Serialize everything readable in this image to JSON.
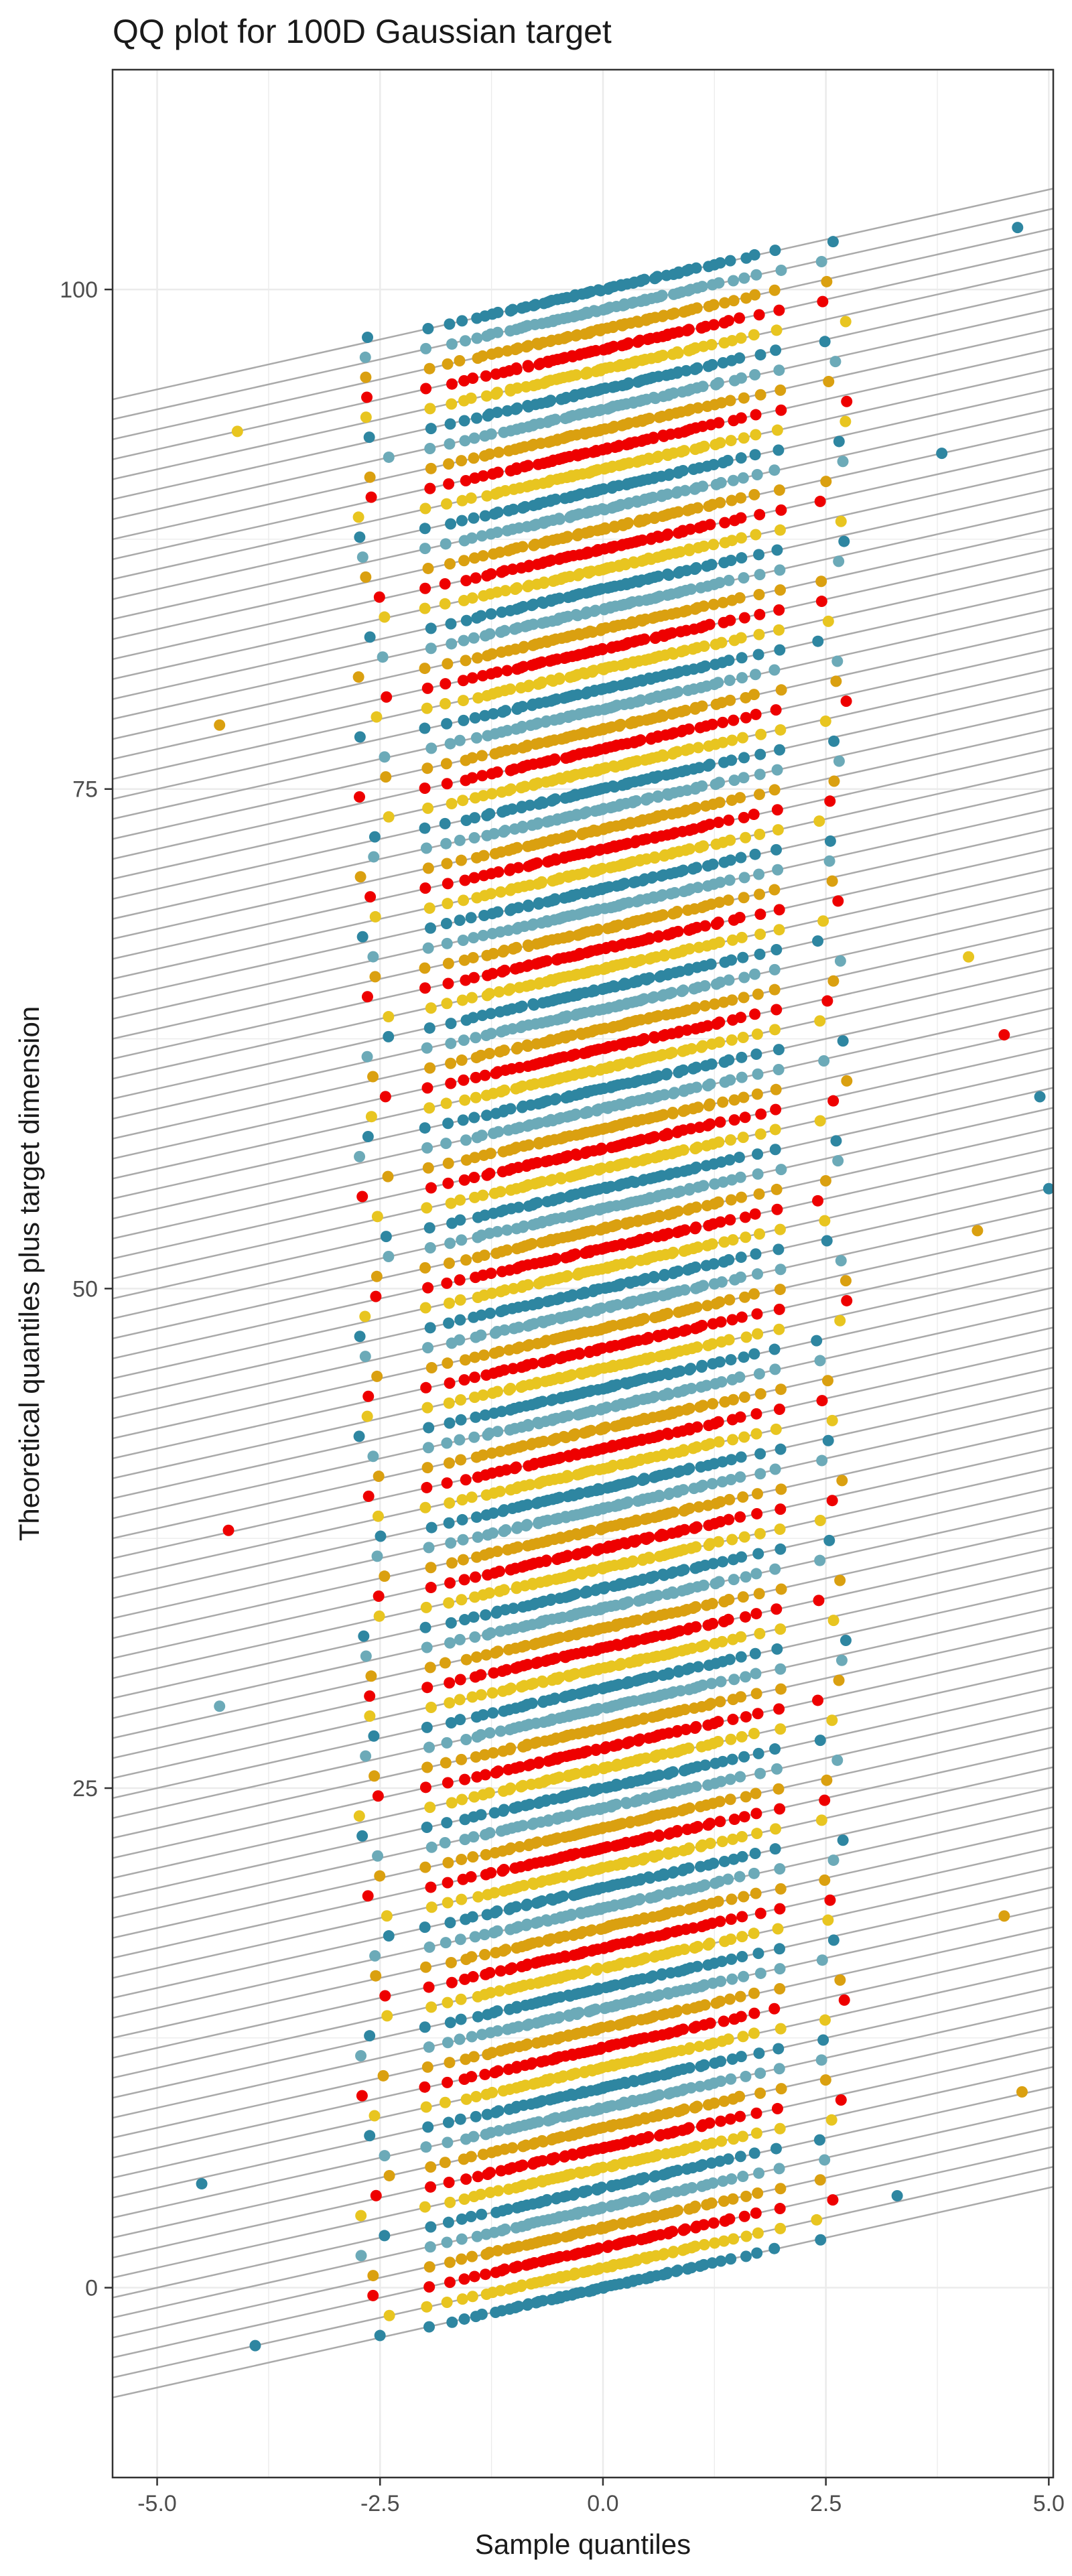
{
  "chart_data": {
    "type": "scatter",
    "title": "QQ plot for 100D Gaussian target",
    "xlabel": "Sample quantiles",
    "ylabel": "Theoretical quantiles plus target dimension",
    "xlim": [
      -5.5,
      5.05
    ],
    "ylim": [
      -9.5,
      111
    ],
    "x_ticks": [
      -5.0,
      -2.5,
      0.0,
      2.5,
      5.0
    ],
    "x_tick_labels": [
      "-5.0",
      "-2.5",
      "0.0",
      "2.5",
      "5.0"
    ],
    "y_ticks": [
      0,
      25,
      50,
      75,
      100
    ],
    "y_tick_labels": [
      "0",
      "25",
      "50",
      "75",
      "100"
    ],
    "grid": true,
    "legend": "none",
    "n_dimensions": 101,
    "points_per_dimension": 60,
    "reference_line": {
      "slope": 1,
      "intercept_offset": 0
    },
    "series_colors": [
      "#2E86A1",
      "#E8C520",
      "#EE0000",
      "#DAA010",
      "#6CAAB8"
    ],
    "colors": {
      "background": "#FFFFFF",
      "panel_border": "#333333",
      "grid": "#EBEBEB",
      "reference_line": "#AAAAAA",
      "text": "#1A1A1A",
      "tick_text": "#4D4D4D"
    },
    "outliers": [
      {
        "dim": 0,
        "x": -3.9,
        "y": -2.9
      },
      {
        "dim": 0,
        "x": 3.3,
        "y": 4.6
      },
      {
        "dim": 5,
        "x": -4.5,
        "y": 5.2
      },
      {
        "dim": 8,
        "x": 4.7,
        "y": 9.8
      },
      {
        "dim": 18,
        "x": 4.5,
        "y": 18.6
      },
      {
        "dim": 29,
        "x": -4.3,
        "y": 29.1
      },
      {
        "dim": 37,
        "x": -4.2,
        "y": 37.9
      },
      {
        "dim": 50,
        "x": 5.0,
        "y": 55.0
      },
      {
        "dim": 60,
        "x": 4.9,
        "y": 59.6
      },
      {
        "dim": 62,
        "x": 4.5,
        "y": 62.7
      },
      {
        "dim": 66,
        "x": 4.1,
        "y": 66.6
      },
      {
        "dim": 78,
        "x": -4.3,
        "y": 78.2
      },
      {
        "dim": 90,
        "x": 3.8,
        "y": 91.8
      },
      {
        "dim": 100,
        "x": 4.65,
        "y": 103.1
      },
      {
        "dim": 91,
        "x": -4.1,
        "y": 92.9
      },
      {
        "dim": 48,
        "x": 4.2,
        "y": 52.9
      }
    ]
  }
}
